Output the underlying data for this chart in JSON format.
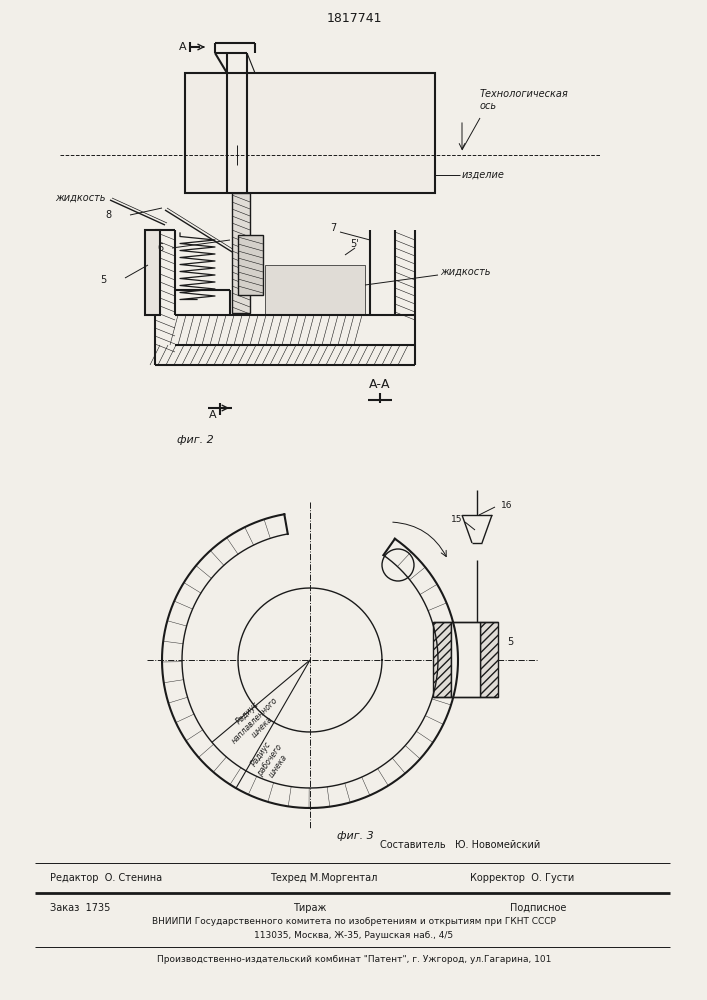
{
  "title": "1817741",
  "bg_color": "#f2efe9",
  "line_color": "#1a1a1a",
  "fig2_label": "фиг. 2",
  "fig3_label": "фиг. 3"
}
